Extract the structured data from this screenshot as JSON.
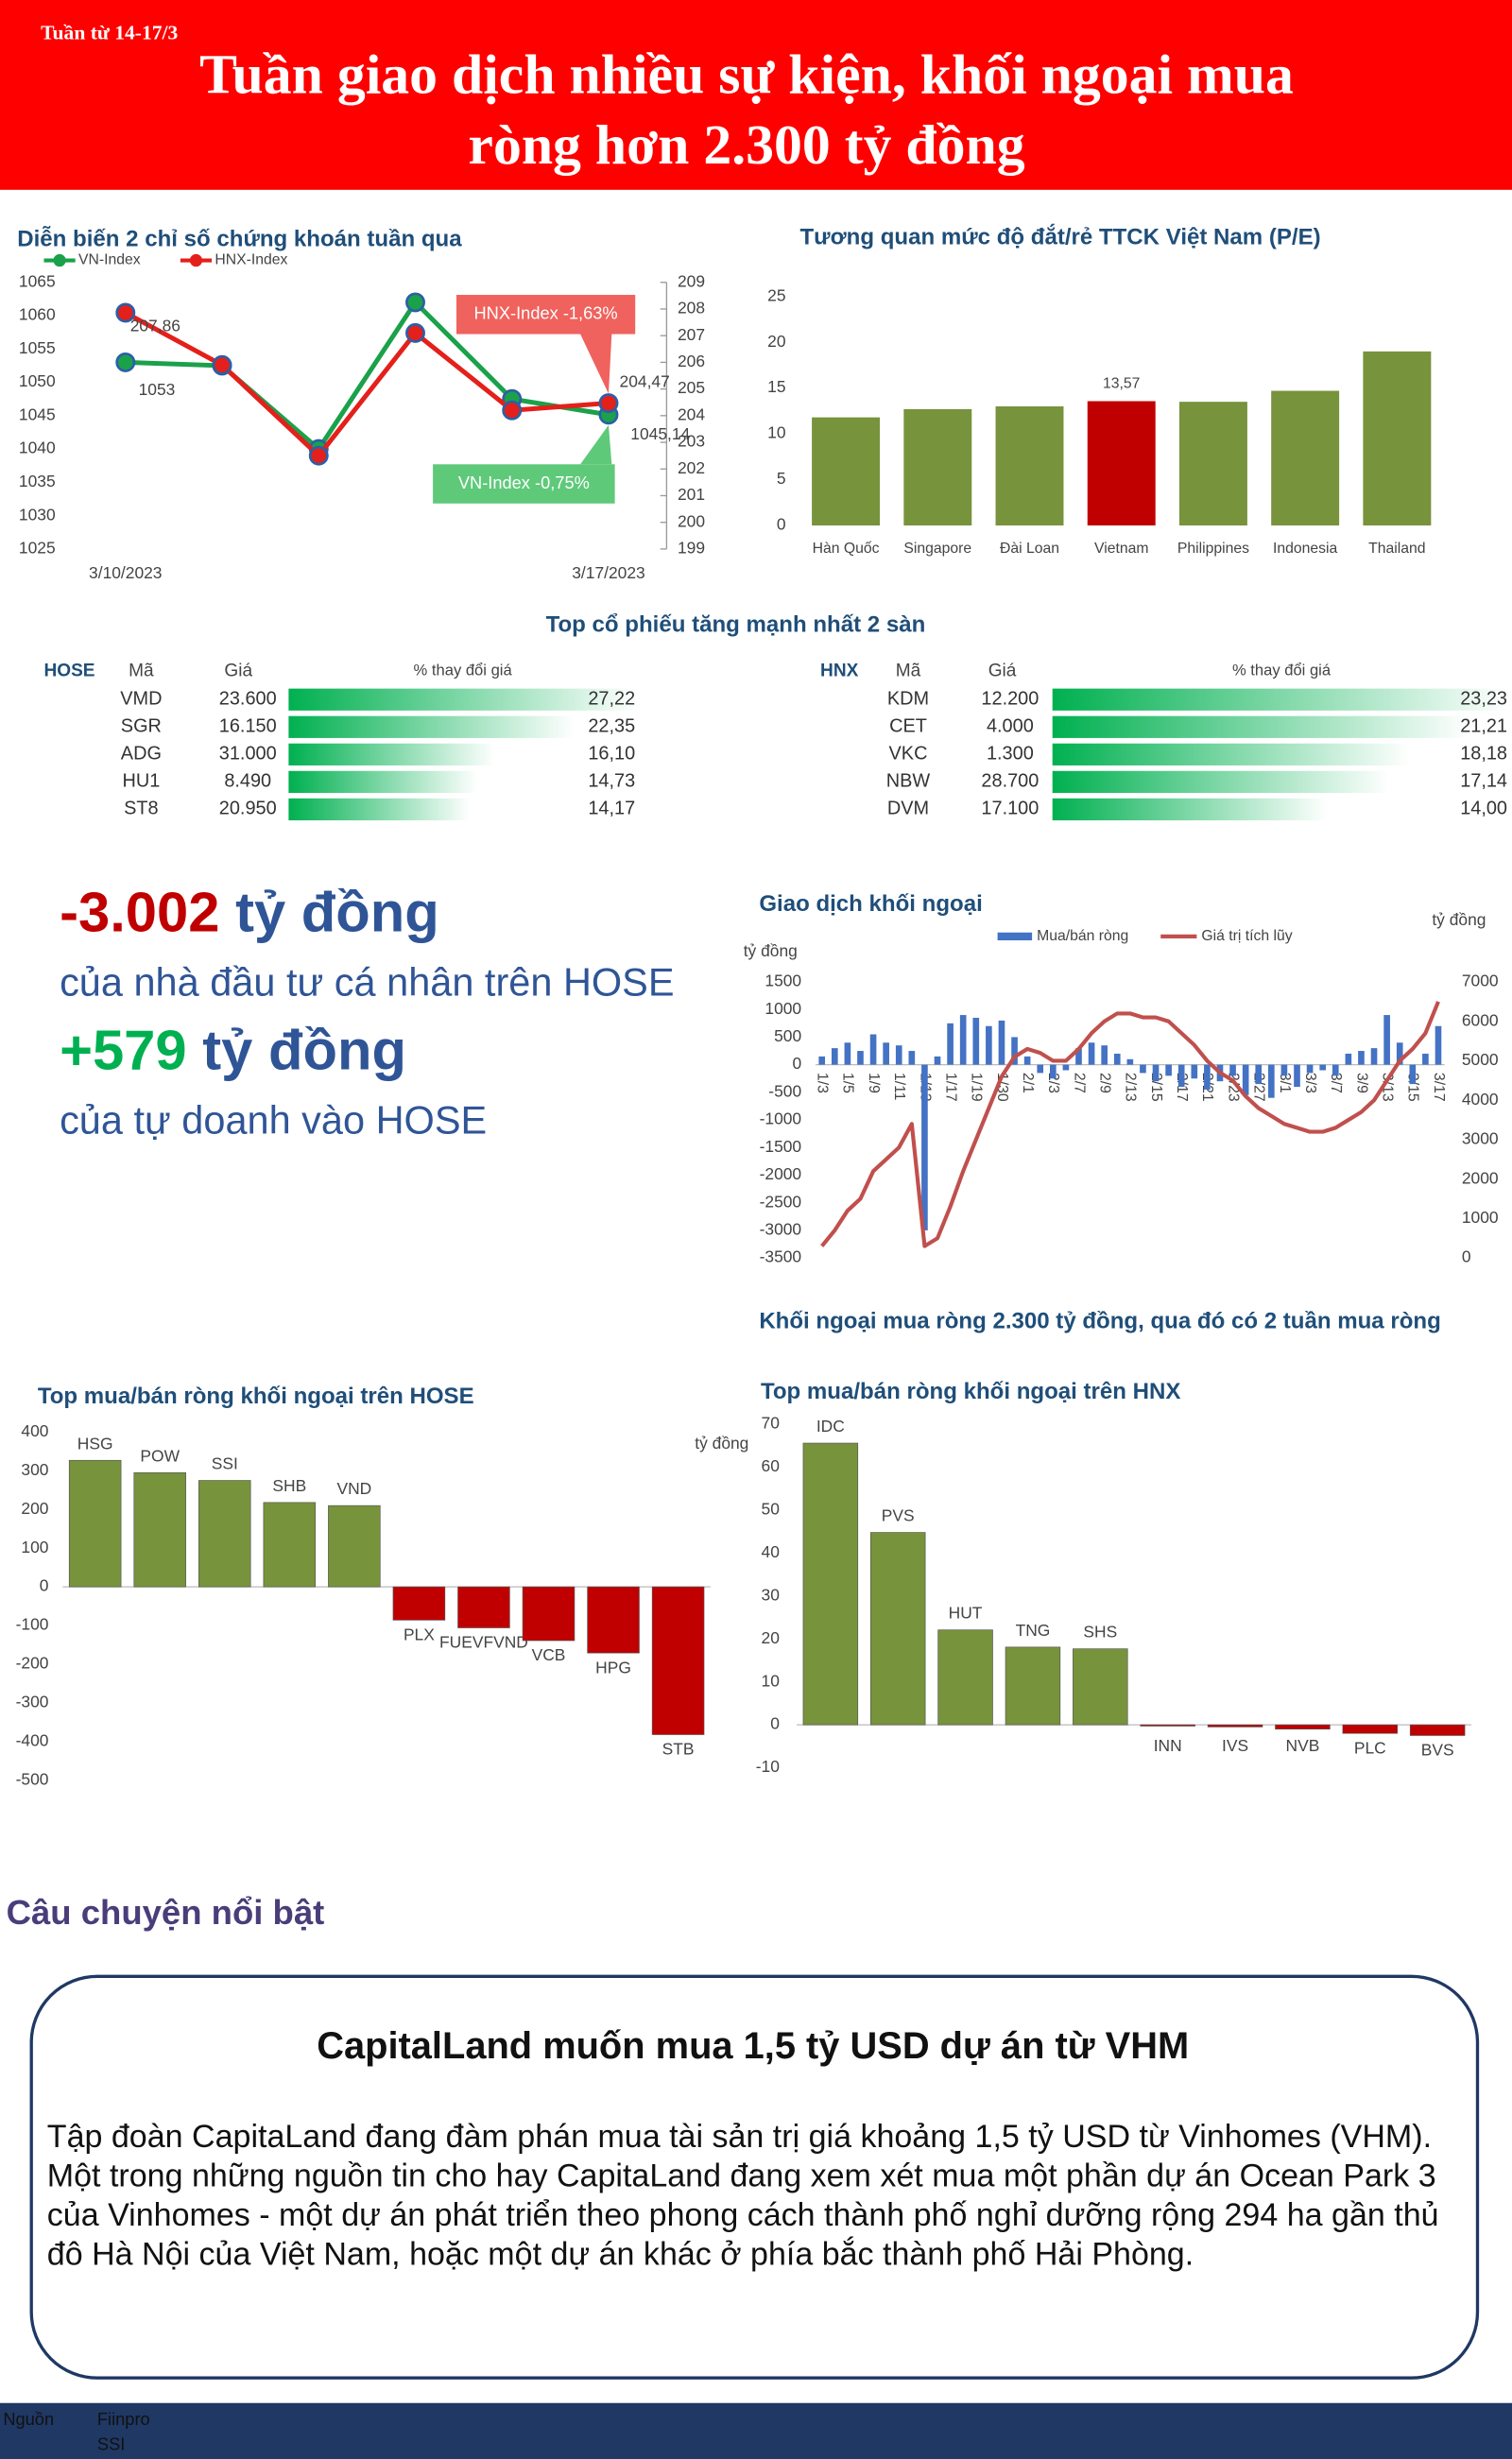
{
  "header": {
    "week": "Tuần từ 14-17/3",
    "title_lines": [
      "Tuần giao dịch nhiều sự kiện, khối ngoại mua",
      "ròng hơn 2.300 tỷ đồng"
    ]
  },
  "chart_data": [
    {
      "type": "line",
      "title": "Diễn biến 2 chỉ số chứng khoán tuần qua",
      "categories": [
        "3/10/2023",
        null,
        null,
        null,
        null,
        "3/17/2023"
      ],
      "series": [
        {
          "name": "VN-Index",
          "color": "#1aa14a",
          "values": [
            1053,
            1052.5,
            1040,
            1062,
            1047.5,
            1045.14
          ],
          "value_labels": [
            "1053",
            null,
            null,
            null,
            null,
            "1045,14"
          ]
        },
        {
          "name": "HNX-Index",
          "color": "#e3201b",
          "axis": "y2",
          "values": [
            207.86,
            205.9,
            202.5,
            207.1,
            204.2,
            204.47
          ],
          "value_labels": [
            "207,86",
            null,
            null,
            null,
            null,
            "204,47"
          ]
        }
      ],
      "ylim": [
        1025,
        1065
      ],
      "yticks": [
        1025,
        1030,
        1035,
        1040,
        1045,
        1050,
        1055,
        1060,
        1065
      ],
      "y2lim": [
        199,
        209
      ],
      "y2ticks": [
        199,
        200,
        201,
        202,
        203,
        204,
        205,
        206,
        207,
        208,
        209
      ],
      "annotations": [
        {
          "text": "HNX-Index -1,63%",
          "color": "#f0625d"
        },
        {
          "text": "VN-Index -0,75%",
          "color": "#5fc97a"
        }
      ]
    },
    {
      "type": "bar",
      "title": "Tương quan mức độ đắt/rẻ TTCK Việt Nam (P/E)",
      "categories": [
        "Hàn Quốc",
        "Singapore",
        "Đài Loan",
        "Vietnam",
        "Philippines",
        "Indonesia",
        "Thailand"
      ],
      "values": [
        11.8,
        12.7,
        13.0,
        13.57,
        13.5,
        14.7,
        19.0
      ],
      "value_labels": [
        null,
        null,
        null,
        "13,57",
        null,
        null,
        null
      ],
      "colors": [
        "#77933c",
        "#77933c",
        "#77933c",
        "#c00000",
        "#77933c",
        "#77933c",
        "#77933c"
      ],
      "ylim": [
        0,
        25
      ],
      "yticks": [
        0,
        5,
        10,
        15,
        20,
        25
      ]
    },
    {
      "type": "combo",
      "title": "Giao dịch khối ngoại",
      "y_label": "tỷ đồng",
      "y2_label": "tỷ đồng",
      "categories": [
        "1/3",
        null,
        "1/5",
        null,
        "1/9",
        null,
        "1/11",
        null,
        "1/13",
        null,
        "1/17",
        null,
        "1/19",
        null,
        "1/30",
        null,
        "2/1",
        null,
        "2/3",
        null,
        "2/7",
        null,
        "2/9",
        null,
        "2/13",
        null,
        "2/15",
        null,
        "2/17",
        null,
        "2/21",
        null,
        "2/23",
        null,
        "2/27",
        null,
        "3/1",
        null,
        "3/3",
        null,
        "3/7",
        null,
        "3/9",
        null,
        "3/13",
        null,
        "3/15",
        null,
        "3/17"
      ],
      "series": [
        {
          "name": "Mua/bán ròng",
          "type": "bar",
          "color": "#4472c4",
          "values": [
            150,
            300,
            400,
            250,
            550,
            400,
            350,
            250,
            -3000,
            150,
            750,
            900,
            850,
            700,
            800,
            500,
            150,
            -150,
            -250,
            -100,
            300,
            400,
            350,
            200,
            100,
            -150,
            -300,
            -200,
            -400,
            -250,
            -450,
            -300,
            -200,
            -550,
            -350,
            -600,
            -200,
            -400,
            -150,
            -100,
            -200,
            200,
            250,
            300,
            900,
            400,
            -350,
            200,
            700
          ]
        },
        {
          "name": "Giá trị tích lũy",
          "type": "line",
          "color": "#c0504d",
          "axis": "y2",
          "values": [
            300,
            700,
            1200,
            1500,
            2200,
            2500,
            2800,
            3400,
            300,
            500,
            1300,
            2200,
            3000,
            3800,
            4600,
            5100,
            5300,
            5200,
            5000,
            5000,
            5300,
            5700,
            6000,
            6200,
            6200,
            6100,
            6100,
            6000,
            5700,
            5400,
            5000,
            4700,
            4500,
            4100,
            3800,
            3600,
            3400,
            3300,
            3200,
            3200,
            3300,
            3500,
            3700,
            4000,
            4500,
            5000,
            5300,
            5700,
            6500
          ]
        }
      ],
      "ylim": [
        -3500,
        1500
      ],
      "yticks": [
        -3500,
        -3000,
        -2500,
        -2000,
        -1500,
        -1000,
        -500,
        0,
        500,
        1000,
        1500
      ],
      "y2lim": [
        0,
        7000
      ],
      "y2ticks": [
        0,
        1000,
        2000,
        3000,
        4000,
        5000,
        6000,
        7000
      ],
      "caption": "Khối ngoại mua ròng 2.300 tỷ đồng, qua đó có 2 tuần mua ròng"
    },
    {
      "type": "bar",
      "title": "Top mua/bán ròng khối ngoại trên HOSE",
      "categories": [
        "HSG",
        "POW",
        "SSI",
        "SHB",
        "VND",
        "PLX",
        "FUEVFVND",
        "VCB",
        "HPG",
        "STB"
      ],
      "values": [
        327,
        295,
        275,
        218,
        210,
        -86,
        -106,
        -139,
        -171,
        -382
      ],
      "color": "#77933c",
      "negative_color": "#c00000",
      "ylim": [
        -500,
        400
      ],
      "yticks": [
        -500,
        -400,
        -300,
        -200,
        -100,
        0,
        100,
        200,
        300,
        400
      ]
    },
    {
      "type": "bar",
      "title": "Top mua/bán ròng khối ngoại trên HNX",
      "y_label": "tỷ đồng",
      "categories": [
        "IDC",
        "PVS",
        "HUT",
        "TNG",
        "SHS",
        "INN",
        "IVS",
        "NVB",
        "PLC",
        "BVS"
      ],
      "values": [
        65.6,
        44.8,
        22.1,
        18.1,
        17.7,
        -0.3,
        -0.5,
        -1.0,
        -2.0,
        -2.5
      ],
      "color": "#77933c",
      "negative_color": "#c00000",
      "ylim": [
        -10,
        70
      ],
      "yticks": [
        -10,
        0,
        10,
        20,
        30,
        40,
        50,
        60,
        70
      ]
    }
  ],
  "tables_title": "Top cổ phiếu tăng mạnh nhất 2 sàn",
  "tables": [
    {
      "exchange": "HOSE",
      "columns": [
        "Mã",
        "Giá",
        "% thay đổi giá"
      ],
      "rows": [
        {
          "code": "VMD",
          "price": "23.600",
          "change": 27.22,
          "change_label": "27,22"
        },
        {
          "code": "SGR",
          "price": "16.150",
          "change": 22.35,
          "change_label": "22,35"
        },
        {
          "code": "ADG",
          "price": "31.000",
          "change": 16.1,
          "change_label": "16,10"
        },
        {
          "code": "HU1",
          "price": "8.490",
          "change": 14.73,
          "change_label": "14,73"
        },
        {
          "code": "ST8",
          "price": "20.950",
          "change": 14.17,
          "change_label": "14,17"
        }
      ]
    },
    {
      "exchange": "HNX",
      "columns": [
        "Mã",
        "Giá",
        "% thay đổi giá"
      ],
      "rows": [
        {
          "code": "KDM",
          "price": "12.200",
          "change": 23.23,
          "change_label": "23,23"
        },
        {
          "code": "CET",
          "price": "4.000",
          "change": 21.21,
          "change_label": "21,21"
        },
        {
          "code": "VKC",
          "price": "1.300",
          "change": 18.18,
          "change_label": "18,18"
        },
        {
          "code": "NBW",
          "price": "28.700",
          "change": 17.14,
          "change_label": "17,14"
        },
        {
          "code": "DVM",
          "price": "17.100",
          "change": 14.0,
          "change_label": "14,00"
        }
      ]
    }
  ],
  "stats": [
    {
      "value": "-3.002",
      "unit": "tỷ đồng",
      "description": "của nhà đầu tư cá nhân trên HOSE",
      "color": "#c00000"
    },
    {
      "value": "+579",
      "unit": "tỷ đồng",
      "description": "của tự doanh vào HOSE",
      "color": "#00b050"
    }
  ],
  "story": {
    "heading": "Câu chuyện nổi bật",
    "title": "CapitalLand muốn mua 1,5 tỷ USD dự án từ VHM",
    "paragraphs": [
      "Tập đoàn CapitaLand đang đàm phán mua tài sản trị giá khoảng 1,5 tỷ USD từ Vinhomes (VHM).",
      "Một trong những nguồn tin cho hay CapitaLand đang xem xét mua một phần dự án Ocean Park 3 của Vinhomes - một dự án phát triển theo phong cách thành phố nghỉ dưỡng rộng 294 ha gần thủ đô Hà Nội của Việt Nam, hoặc một dự án khác ở phía bắc thành phố Hải Phòng."
    ]
  },
  "footer": {
    "label": "Nguồn",
    "sources": [
      "Fiinpro",
      "SSI"
    ]
  }
}
